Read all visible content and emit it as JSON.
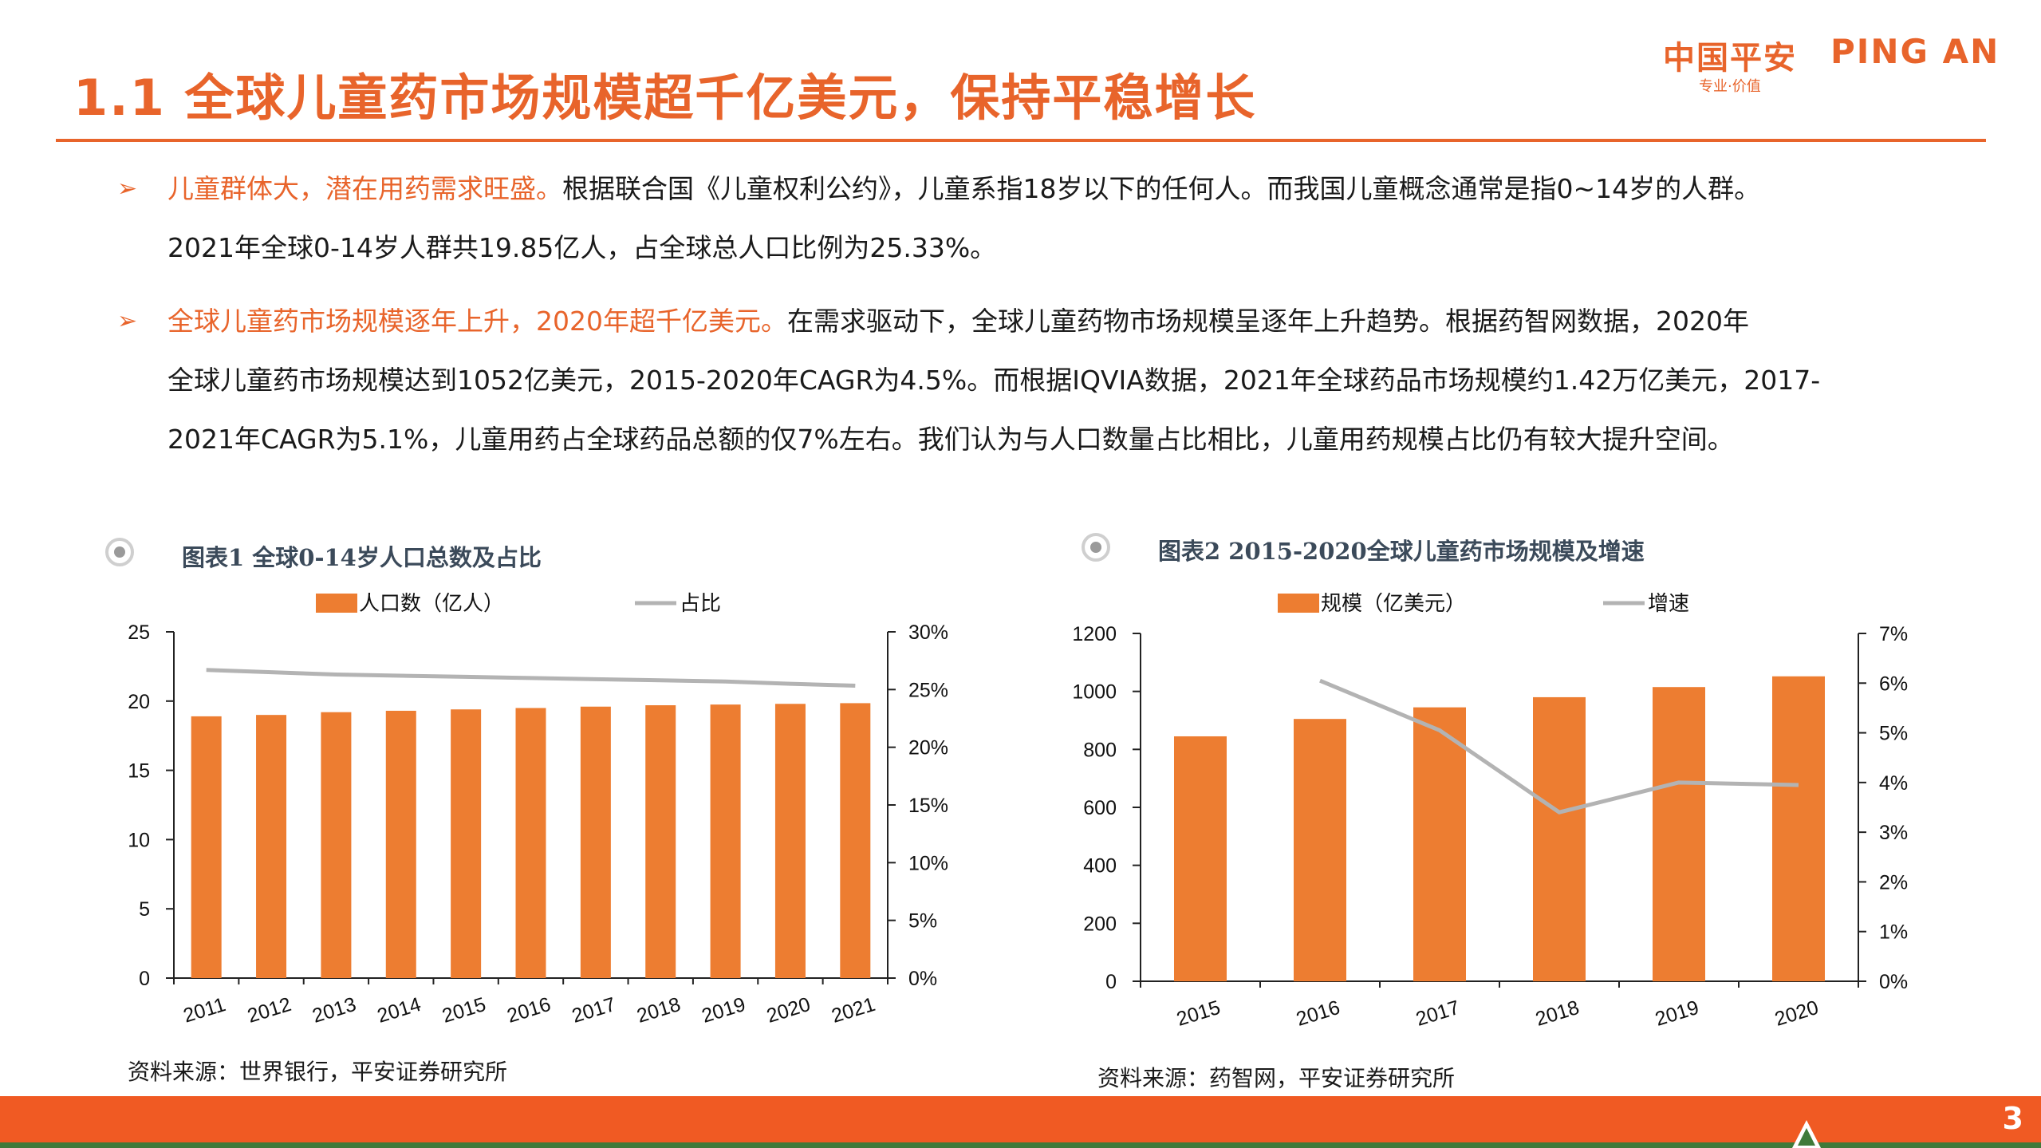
{
  "header": {
    "title": "1.1 全球儿童药市场规模超千亿美元，保持平稳增长",
    "logo_cn": "中国平安",
    "logo_en": "PING AN",
    "logo_tagline": "专业·价值"
  },
  "bullets": [
    {
      "lead": "儿童群体大，潜在用药需求旺盛。",
      "lines": [
        "根据联合国《儿童权利公约》，儿童系指18岁以下的任何人。而我国儿童概念通常是指0~14岁的人群。",
        "2021年全球0-14岁人群共19.85亿人，占全球总人口比例为25.33%。"
      ]
    },
    {
      "lead": "全球儿童药市场规模逐年上升，2020年超千亿美元。",
      "lines": [
        "在需求驱动下，全球儿童药物市场规模呈逐年上升趋势。根据药智网数据，2020年",
        "全球儿童药市场规模达到1052亿美元，2015-2020年CAGR为4.5%。而根据IQVIA数据，2021年全球药品市场规模约1.42万亿美元，2017-",
        "2021年CAGR为5.1%，儿童用药占全球药品总额的仅7%左右。我们认为与人口数量占比相比，儿童用药规模占比仍有较大提升空间。"
      ]
    }
  ],
  "figures": [
    {
      "title": "图表1 全球0-14岁人口总数及占比",
      "source": "资料来源：世界银行，平安证券研究所"
    },
    {
      "title": "图表2 2015-2020全球儿童药市场规模及增速",
      "source": "资料来源：药智网，平安证券研究所"
    }
  ],
  "chart_data": [
    {
      "type": "bar",
      "categories": [
        "2011",
        "2012",
        "2013",
        "2014",
        "2015",
        "2016",
        "2017",
        "2018",
        "2019",
        "2020",
        "2021"
      ],
      "series": [
        {
          "name": "人口数（亿人）",
          "type": "bar",
          "axis": "left",
          "color": "#ed7d31",
          "values": [
            18.9,
            19.0,
            19.2,
            19.3,
            19.4,
            19.5,
            19.6,
            19.7,
            19.75,
            19.8,
            19.85
          ]
        },
        {
          "name": "占比",
          "type": "line",
          "axis": "right",
          "color": "#b3b3b3",
          "values": [
            26.7,
            26.5,
            26.3,
            26.2,
            26.1,
            26.0,
            25.9,
            25.8,
            25.7,
            25.5,
            25.33
          ]
        }
      ],
      "y_left": {
        "min": 0,
        "max": 25,
        "ticks": [
          "0",
          "5",
          "10",
          "15",
          "20",
          "25"
        ]
      },
      "y_right": {
        "min": 0,
        "max": 30,
        "ticks": [
          "0%",
          "5%",
          "10%",
          "15%",
          "20%",
          "25%",
          "30%"
        ]
      },
      "legend": "top"
    },
    {
      "type": "bar",
      "categories": [
        "2015",
        "2016",
        "2017",
        "2018",
        "2019",
        "2020"
      ],
      "series": [
        {
          "name": "规模（亿美元）",
          "type": "bar",
          "axis": "left",
          "color": "#ed7d31",
          "values": [
            845,
            905,
            945,
            980,
            1015,
            1052
          ]
        },
        {
          "name": "增速",
          "type": "line",
          "axis": "right",
          "color": "#b3b3b3",
          "values": [
            null,
            6.05,
            5.05,
            3.4,
            4.0,
            3.95
          ]
        }
      ],
      "y_left": {
        "min": 0,
        "max": 1200,
        "ticks": [
          "0",
          "200",
          "400",
          "600",
          "800",
          "1000",
          "1200"
        ]
      },
      "y_right": {
        "min": 0,
        "max": 7,
        "ticks": [
          "0%",
          "1%",
          "2%",
          "3%",
          "4%",
          "5%",
          "6%",
          "7%"
        ]
      },
      "legend": "top"
    }
  ],
  "footer": {
    "page_number": "3"
  }
}
